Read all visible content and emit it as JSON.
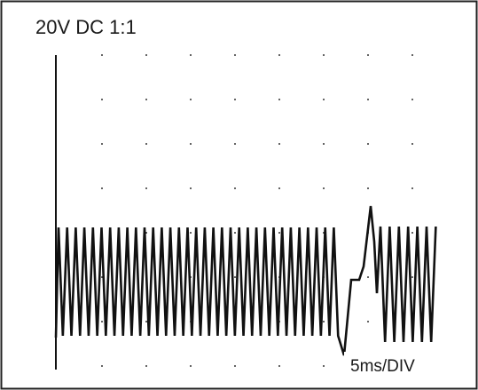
{
  "header": {
    "title": "20V DC 1:1"
  },
  "footer": {
    "timebase": "5ms/DIV"
  }
}
